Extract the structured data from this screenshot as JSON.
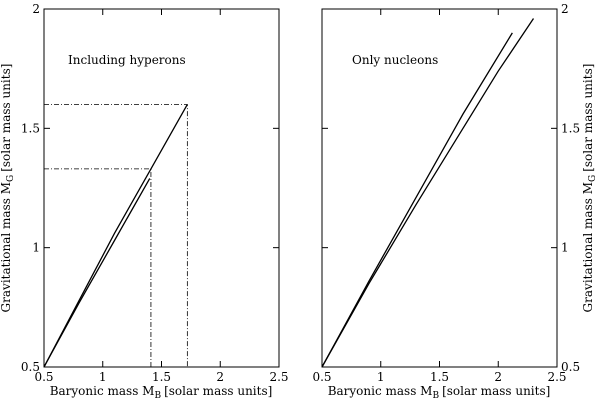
{
  "chart_data": [
    {
      "type": "line",
      "panel": "left",
      "annotation": "Including hyperons",
      "xlabel": "Baryonic mass M",
      "xlabel_sub": "B",
      "xlabel_units": "[solar mass units]",
      "ylabel": "",
      "xlim": [
        0.5,
        2.5
      ],
      "ylim": [
        0.5,
        2.0
      ],
      "xticks": [
        "0.5",
        "1",
        "1.5",
        "2",
        "2.5"
      ],
      "yticks": [
        "0.5",
        "1",
        "1.5",
        "2"
      ],
      "ytick_values": [
        0.5,
        1.0,
        1.5,
        2.0
      ],
      "xtick_values": [
        0.5,
        1.0,
        1.5,
        2.0,
        2.5
      ],
      "grid": false,
      "series": [
        {
          "x": [
            0.5,
            0.8,
            1.1,
            1.4
          ],
          "y": [
            0.5,
            0.77,
            1.03,
            1.29
          ]
        },
        {
          "x": [
            0.5,
            0.8,
            1.1,
            1.41,
            1.72
          ],
          "y": [
            0.5,
            0.78,
            1.06,
            1.33,
            1.6
          ]
        }
      ],
      "reference_lines": [
        {
          "x": 1.41,
          "y": 1.33
        },
        {
          "x": 1.72,
          "y": 1.6
        }
      ]
    },
    {
      "type": "line",
      "panel": "right",
      "annotation": "Only nucleons",
      "xlabel": "Baryonic mass M",
      "xlabel_sub": "B",
      "xlabel_units": "[solar mass units]",
      "ylabel": "Gravitational mass M",
      "ylabel_sub": "G",
      "ylabel_units": "[solar mass units]",
      "xlim": [
        0.5,
        2.5
      ],
      "ylim": [
        0.5,
        2.0
      ],
      "xticks": [
        "0.5",
        "1",
        "1.5",
        "2",
        "2.5"
      ],
      "yticks": [
        "0.5",
        "1",
        "1.5",
        "2"
      ],
      "ytick_values": [
        0.5,
        1.0,
        1.5,
        2.0
      ],
      "xtick_values": [
        0.5,
        1.0,
        1.5,
        2.0,
        2.5
      ],
      "grid": false,
      "series": [
        {
          "x": [
            0.5,
            0.9,
            1.3,
            1.7,
            2.12
          ],
          "y": [
            0.5,
            0.86,
            1.21,
            1.56,
            1.9
          ]
        },
        {
          "x": [
            0.5,
            0.9,
            1.3,
            1.7,
            2.0,
            2.3
          ],
          "y": [
            0.5,
            0.85,
            1.18,
            1.5,
            1.74,
            1.96
          ]
        }
      ]
    }
  ]
}
